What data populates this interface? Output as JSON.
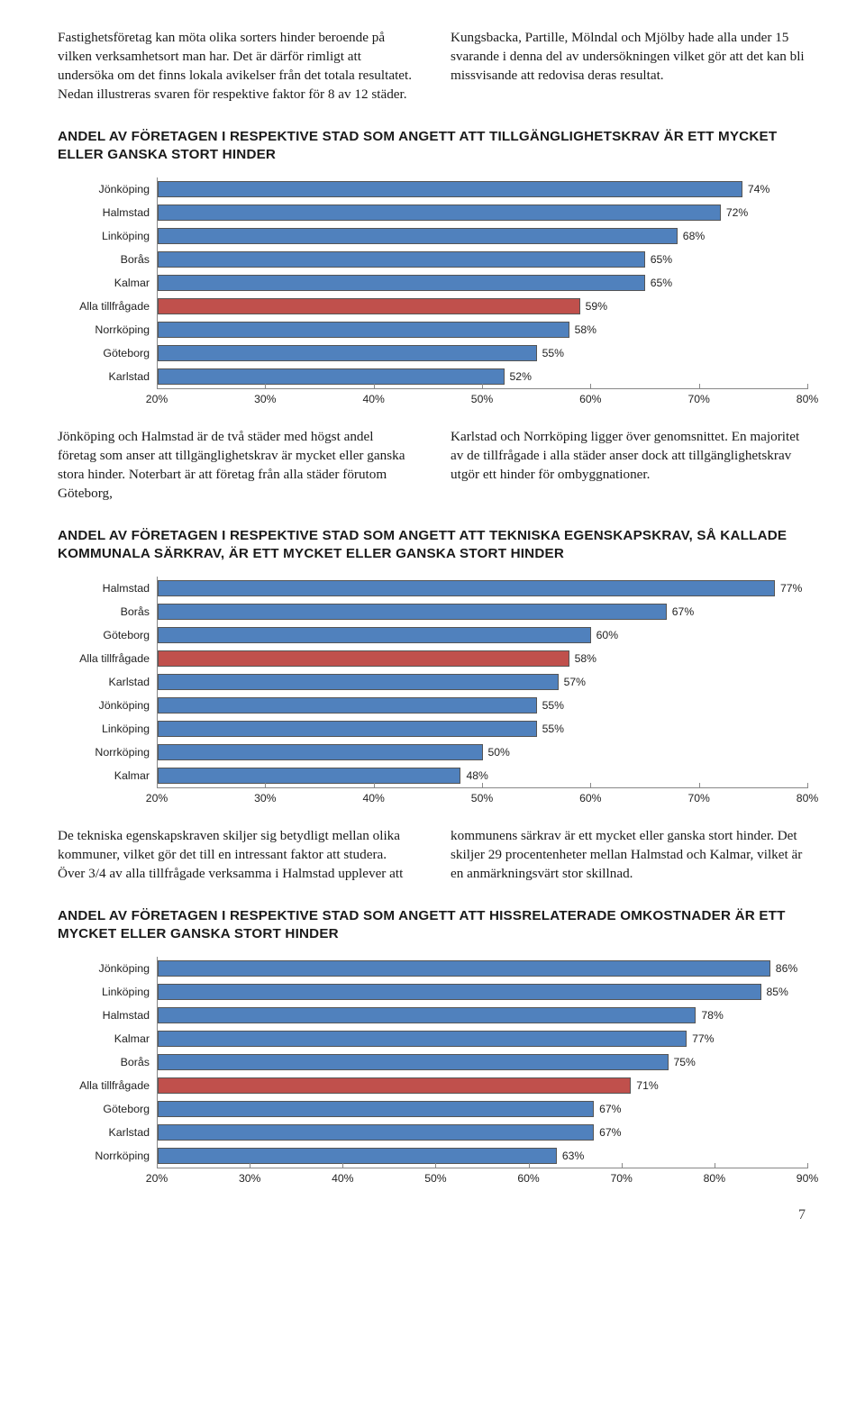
{
  "colors": {
    "bar_blue": "#5081bd",
    "bar_red": "#c0504c",
    "bar_border": "#555555",
    "axis": "#888888",
    "text": "#1a1a1a"
  },
  "intro": {
    "left": "Fastighetsföretag kan möta olika sorters hinder beroende på vilken verksamhetsort man har. Det är därför rimligt att undersöka om det finns lokala avikelser från det totala resultatet. Nedan illustreras svaren för respektive faktor för 8 av 12 städer.",
    "right": "Kungsbacka, Partille, Mölndal och Mjölby hade alla under 15 svarande i denna del av undersökningen vilket gör att det kan bli missvisande att redovisa deras resultat."
  },
  "chart1": {
    "title": "ANDEL AV FÖRETAGEN I RESPEKTIVE STAD SOM ANGETT ATT TILLGÄNGLIGHETSKRAV ÄR ETT MYCKET ELLER GANSKA STORT HINDER",
    "xmin": 20,
    "xmax": 80,
    "xstep": 10,
    "categories": [
      "Jönköping",
      "Halmstad",
      "Linköping",
      "Borås",
      "Kalmar",
      "Alla tillfrågade",
      "Norrköping",
      "Göteborg",
      "Karlstad"
    ],
    "values": [
      74,
      72,
      68,
      65,
      65,
      59,
      58,
      55,
      52
    ],
    "highlight_index": 5
  },
  "mid1": {
    "left": "Jönköping och Halmstad är de två städer med högst andel företag som anser att tillgänglighetskrav är mycket eller ganska stora hinder. Noterbart är att företag från alla städer förutom Göteborg,",
    "right": "Karlstad och Norrköping ligger över genomsnittet. En majoritet av de tillfrågade i alla städer anser dock att tillgänglighetskrav utgör ett hinder för ombyggnationer."
  },
  "chart2": {
    "title": "ANDEL AV FÖRETAGEN I RESPEKTIVE STAD SOM ANGETT ATT TEKNISKA EGENSKAPSKRAV, SÅ KALLADE KOMMUNALA SÄRKRAV, ÄR ETT MYCKET ELLER GANSKA STORT HINDER",
    "xmin": 20,
    "xmax": 80,
    "xstep": 10,
    "categories": [
      "Halmstad",
      "Borås",
      "Göteborg",
      "Alla tillfrågade",
      "Karlstad",
      "Jönköping",
      "Linköping",
      "Norrköping",
      "Kalmar"
    ],
    "values": [
      77,
      67,
      60,
      58,
      57,
      55,
      55,
      50,
      48
    ],
    "highlight_index": 3
  },
  "mid2": {
    "left": "De tekniska egenskapskraven skiljer sig betydligt mellan olika kommuner, vilket gör det till en intressant faktor att studera. Över 3/4 av alla tillfrågade verksamma i Halmstad upplever att",
    "right": "kommunens särkrav är ett mycket eller ganska stort hinder. Det skiljer 29 procentenheter mellan Halmstad och Kalmar, vilket är en anmärkningsvärt stor skillnad."
  },
  "chart3": {
    "title": "ANDEL AV FÖRETAGEN I RESPEKTIVE STAD SOM ANGETT ATT HISSRELATERADE OMKOSTNADER ÄR ETT MYCKET ELLER GANSKA STORT HINDER",
    "xmin": 20,
    "xmax": 90,
    "xstep": 10,
    "categories": [
      "Jönköping",
      "Linköping",
      "Halmstad",
      "Kalmar",
      "Borås",
      "Alla tillfrågade",
      "Göteborg",
      "Karlstad",
      "Norrköping"
    ],
    "values": [
      86,
      85,
      78,
      77,
      75,
      71,
      67,
      67,
      63
    ],
    "highlight_index": 5
  },
  "pagenum": "7"
}
